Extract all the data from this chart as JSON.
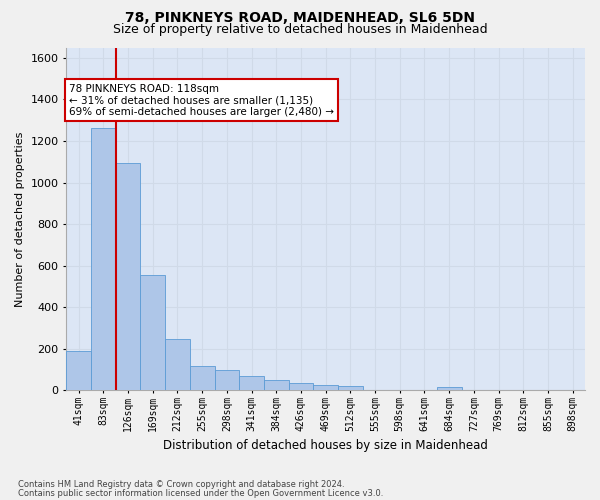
{
  "title1": "78, PINKNEYS ROAD, MAIDENHEAD, SL6 5DN",
  "title2": "Size of property relative to detached houses in Maidenhead",
  "xlabel": "Distribution of detached houses by size in Maidenhead",
  "ylabel": "Number of detached properties",
  "footnote1": "Contains HM Land Registry data © Crown copyright and database right 2024.",
  "footnote2": "Contains public sector information licensed under the Open Government Licence v3.0.",
  "bar_color": "#aec6e8",
  "bar_edge_color": "#5b9bd5",
  "background_color": "#dce6f5",
  "grid_color": "#d0dae8",
  "fig_background": "#f0f0f0",
  "annotation_box_color": "#cc0000",
  "vline_color": "#cc0000",
  "categories": [
    "41sqm",
    "83sqm",
    "126sqm",
    "169sqm",
    "212sqm",
    "255sqm",
    "298sqm",
    "341sqm",
    "384sqm",
    "426sqm",
    "469sqm",
    "512sqm",
    "555sqm",
    "598sqm",
    "641sqm",
    "684sqm",
    "727sqm",
    "769sqm",
    "812sqm",
    "855sqm",
    "898sqm"
  ],
  "values": [
    190,
    1265,
    1095,
    555,
    245,
    115,
    100,
    70,
    50,
    35,
    28,
    20,
    0,
    0,
    0,
    18,
    0,
    0,
    0,
    0,
    0
  ],
  "ylim": [
    0,
    1650
  ],
  "yticks": [
    0,
    200,
    400,
    600,
    800,
    1000,
    1200,
    1400,
    1600
  ],
  "property_label": "78 PINKNEYS ROAD: 118sqm",
  "pct_smaller": "31% of detached houses are smaller (1,135)",
  "pct_larger": "69% of semi-detached houses are larger (2,480)",
  "vline_x": 1.5,
  "title1_fontsize": 10,
  "title2_fontsize": 9,
  "ylabel_fontsize": 8,
  "xlabel_fontsize": 8.5,
  "tick_fontsize": 7,
  "annot_fontsize": 7.5,
  "footnote_fontsize": 6
}
